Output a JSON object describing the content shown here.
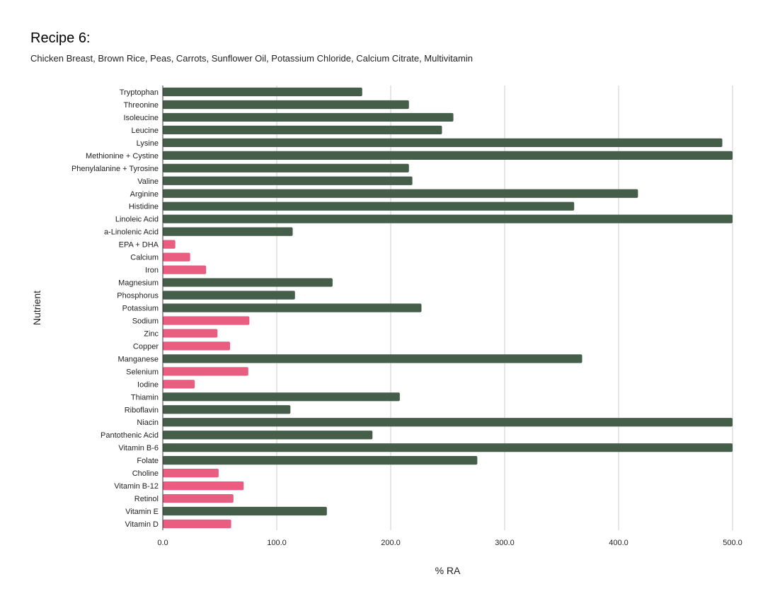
{
  "title": "Recipe 6:",
  "subtitle": "Chicken Breast, Brown Rice, Peas, Carrots, Sunflower Oil, Potassium Chloride, Calcium Citrate, Multivitamin",
  "colors": {
    "adequate": "#445e4a",
    "deficient": "#e85d80",
    "grid": "#cccccc",
    "axis": "#333333"
  },
  "chart_data": {
    "type": "bar",
    "orientation": "horizontal",
    "title": "Recipe 6:",
    "subtitle": "Chicken Breast, Brown Rice, Peas, Carrots, Sunflower Oil, Potassium Chloride, Calcium Citrate, Multivitamin",
    "xlabel": "% RA",
    "ylabel": "Nutrient",
    "xlim": [
      0,
      500
    ],
    "xticks": [
      0,
      100,
      200,
      300,
      400,
      500
    ],
    "xtick_labels": [
      "0.0",
      "100.0",
      "200.0",
      "300.0",
      "400.0",
      "500.0"
    ],
    "grid": true,
    "categories": [
      "Tryptophan",
      "Threonine",
      "Isoleucine",
      "Leucine",
      "Lysine",
      "Methionine + Cystine",
      "Phenylalanine + Tyrosine",
      "Valine",
      "Arginine",
      "Histidine",
      "Linoleic Acid",
      "a-Linolenic Acid",
      "EPA + DHA",
      "Calcium",
      "Iron",
      "Magnesium",
      "Phosphorus",
      "Potassium",
      "Sodium",
      "Zinc",
      "Copper",
      "Manganese",
      "Selenium",
      "Iodine",
      "Thiamin",
      "Riboflavin",
      "Niacin",
      "Pantothenic Acid",
      "Vitamin B-6",
      "Folate",
      "Choline",
      "Vitamin B-12",
      "Retinol",
      "Vitamin E",
      "Vitamin D"
    ],
    "values": [
      175,
      216,
      255,
      245,
      491,
      500,
      216,
      219,
      417,
      361,
      500,
      114,
      11,
      24,
      38,
      149,
      116,
      227,
      76,
      48,
      59,
      368,
      75,
      28,
      208,
      112,
      500,
      184,
      500,
      276,
      49,
      71,
      62,
      144,
      60
    ],
    "status": [
      "adequate",
      "adequate",
      "adequate",
      "adequate",
      "adequate",
      "adequate",
      "adequate",
      "adequate",
      "adequate",
      "adequate",
      "adequate",
      "adequate",
      "deficient",
      "deficient",
      "deficient",
      "adequate",
      "adequate",
      "adequate",
      "deficient",
      "deficient",
      "deficient",
      "adequate",
      "deficient",
      "deficient",
      "adequate",
      "adequate",
      "adequate",
      "adequate",
      "adequate",
      "adequate",
      "deficient",
      "deficient",
      "deficient",
      "adequate",
      "deficient"
    ]
  }
}
